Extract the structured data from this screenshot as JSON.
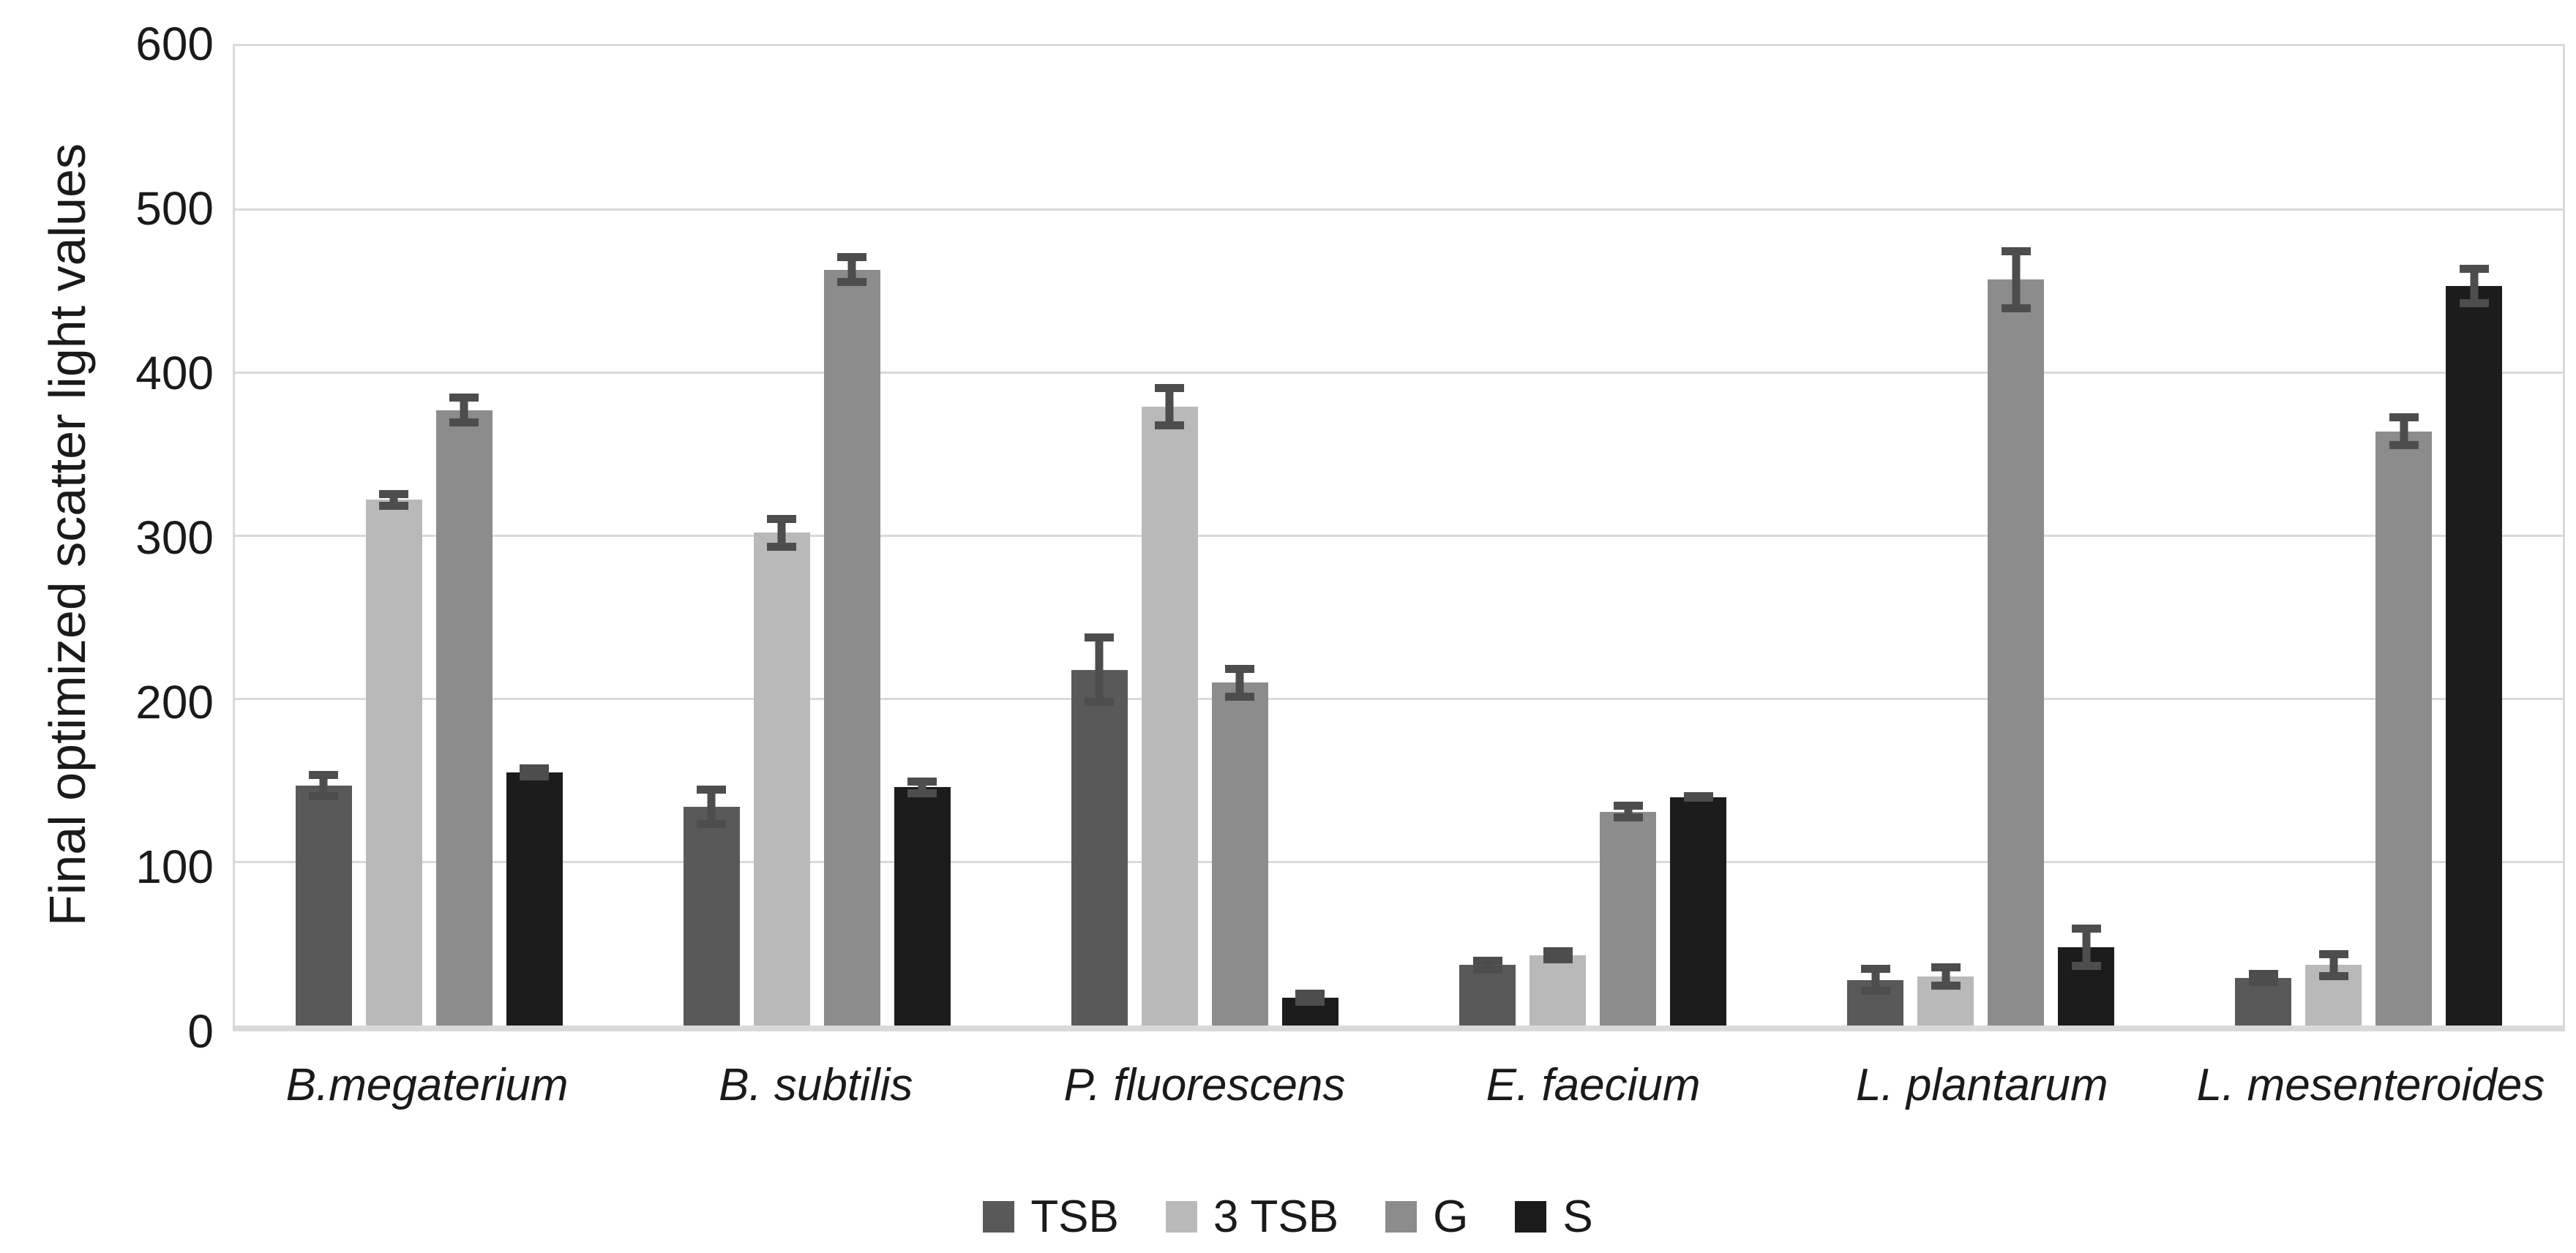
{
  "chart_data": {
    "type": "bar",
    "title": "",
    "xlabel": "",
    "ylabel": "Final optimized scatter light values",
    "ylim": [
      0,
      600
    ],
    "y_ticks": [
      0,
      100,
      200,
      300,
      400,
      500,
      600
    ],
    "grid": "horizontal",
    "gridline_color": "#d9d9d9",
    "error_bar_color": "#4d4d4d",
    "legend_position": "bottom",
    "categories": [
      "B.megaterium",
      "B. subtilis",
      "P. fluorescens",
      "E. faecium",
      "L. plantarum",
      "L. mesenteroides"
    ],
    "series": [
      {
        "name": "TSB",
        "color": "#595959",
        "values": [
          147,
          134,
          218,
          37,
          28,
          29
        ],
        "errors": [
          9,
          13,
          22,
          5,
          9,
          5
        ]
      },
      {
        "name": "3 TSB",
        "color": "#b9b9b9",
        "values": [
          322,
          302,
          379,
          43,
          30,
          37
        ],
        "errors": [
          6,
          11,
          14,
          5,
          8,
          9
        ]
      },
      {
        "name": "G",
        "color": "#8c8c8c",
        "values": [
          377,
          463,
          210,
          131,
          457,
          364
        ],
        "errors": [
          10,
          10,
          11,
          6,
          20,
          11
        ]
      },
      {
        "name": "S",
        "color": "#1c1c1c",
        "values": [
          155,
          146,
          17,
          140,
          48,
          453
        ],
        "errors": [
          5,
          6,
          5,
          3,
          14,
          13
        ]
      }
    ]
  }
}
